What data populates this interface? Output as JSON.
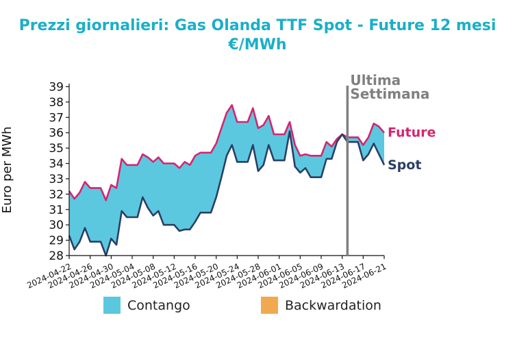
{
  "chart_data": {
    "type": "area",
    "title_line1": "Prezzi giornalieri: Gas Olanda TTF Spot - Future 12 mesi",
    "title_line2": "€/MWh",
    "ylabel": "Euro per MWh",
    "xlabel": "",
    "ylim": [
      28,
      39.2
    ],
    "yticks": [
      28,
      29,
      30,
      31,
      32,
      33,
      34,
      35,
      36,
      37,
      38,
      39
    ],
    "xticks": [
      "2024-04-22",
      "2024-04-26",
      "2024-04-30",
      "2024-05-04",
      "2024-05-08",
      "2024-05-12",
      "2024-05-16",
      "2024-05-20",
      "2024-05-24",
      "2024-05-28",
      "2024-06-01",
      "2024-06-05",
      "2024-06-09",
      "2024-06-13",
      "2024-06-17",
      "2024-06-21"
    ],
    "x": [
      "2024-04-22",
      "2024-04-23",
      "2024-04-24",
      "2024-04-25",
      "2024-04-26",
      "2024-04-27",
      "2024-04-28",
      "2024-04-29",
      "2024-04-30",
      "2024-05-01",
      "2024-05-02",
      "2024-05-03",
      "2024-05-04",
      "2024-05-05",
      "2024-05-06",
      "2024-05-07",
      "2024-05-08",
      "2024-05-09",
      "2024-05-10",
      "2024-05-11",
      "2024-05-12",
      "2024-05-13",
      "2024-05-14",
      "2024-05-15",
      "2024-05-16",
      "2024-05-17",
      "2024-05-18",
      "2024-05-19",
      "2024-05-20",
      "2024-05-21",
      "2024-05-22",
      "2024-05-23",
      "2024-05-24",
      "2024-05-25",
      "2024-05-26",
      "2024-05-27",
      "2024-05-28",
      "2024-05-29",
      "2024-05-30",
      "2024-05-31",
      "2024-06-01",
      "2024-06-02",
      "2024-06-03",
      "2024-06-04",
      "2024-06-05",
      "2024-06-06",
      "2024-06-07",
      "2024-06-08",
      "2024-06-09",
      "2024-06-10",
      "2024-06-11",
      "2024-06-12",
      "2024-06-13",
      "2024-06-14",
      "2024-06-15",
      "2024-06-16",
      "2024-06-17",
      "2024-06-18",
      "2024-06-19",
      "2024-06-20",
      "2024-06-21"
    ],
    "series": [
      {
        "name": "Future",
        "color": "#d6246e",
        "values": [
          32.2,
          31.7,
          32.1,
          32.8,
          32.4,
          32.4,
          32.4,
          31.6,
          32.6,
          32.4,
          34.3,
          33.9,
          33.9,
          33.9,
          34.6,
          34.4,
          34.1,
          34.4,
          34.0,
          34.0,
          34.0,
          33.7,
          34.1,
          33.9,
          34.5,
          34.7,
          34.7,
          34.7,
          35.3,
          36.3,
          37.3,
          37.8,
          36.7,
          36.7,
          36.7,
          37.6,
          36.3,
          36.5,
          37.1,
          35.9,
          35.9,
          35.9,
          36.7,
          35.2,
          34.5,
          34.6,
          34.5,
          34.5,
          34.5,
          35.4,
          35.1,
          35.6,
          35.9,
          35.7,
          35.7,
          35.7,
          35.2,
          35.7,
          36.6,
          36.4,
          36.0
        ]
      },
      {
        "name": "Spot",
        "color": "#2a3f66",
        "values": [
          29.3,
          28.4,
          28.9,
          29.8,
          28.9,
          28.9,
          28.9,
          28.0,
          29.1,
          28.7,
          30.9,
          30.5,
          30.5,
          30.5,
          31.8,
          31.1,
          30.6,
          30.9,
          30.0,
          30.0,
          30.0,
          29.6,
          29.7,
          29.7,
          30.2,
          30.8,
          30.8,
          30.8,
          31.8,
          33.1,
          34.5,
          35.2,
          34.1,
          34.1,
          34.1,
          35.2,
          33.5,
          33.9,
          35.2,
          34.2,
          34.2,
          34.2,
          36.1,
          33.8,
          33.4,
          33.7,
          33.1,
          33.1,
          33.1,
          34.3,
          34.3,
          35.4,
          35.9,
          35.4,
          35.4,
          35.4,
          34.2,
          34.6,
          35.3,
          34.6,
          33.9
        ]
      }
    ],
    "fills": [
      {
        "name": "Contango",
        "color": "#5bc8e0"
      },
      {
        "name": "Backwardation",
        "color": "#f0a94e"
      }
    ],
    "marker": {
      "date": "2024-06-14",
      "label_line1": "Ultima",
      "label_line2": "Settimana",
      "color": "#808080"
    },
    "legend_position": "bottom",
    "grid": false
  }
}
